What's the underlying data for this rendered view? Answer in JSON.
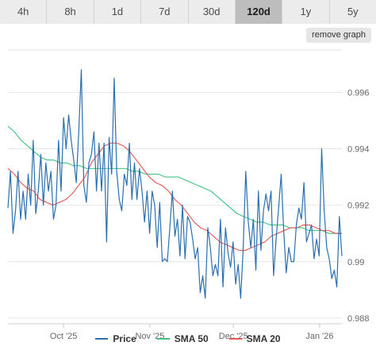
{
  "tabs": [
    {
      "label": "4h"
    },
    {
      "label": "8h"
    },
    {
      "label": "1d"
    },
    {
      "label": "7d"
    },
    {
      "label": "30d"
    },
    {
      "label": "120d",
      "active": true
    },
    {
      "label": "1y"
    },
    {
      "label": "5y"
    }
  ],
  "remove_graph_label": "remove graph",
  "colors": {
    "price": "#2a6fb0",
    "sma50": "#3cc47c",
    "sma20": "#e6564e",
    "grid": "#e6e6e6",
    "axis_text": "#666666"
  },
  "chart_data": {
    "type": "line",
    "x_ticks": [
      {
        "label": "Oct '25",
        "x": 20
      },
      {
        "label": "Nov '25",
        "x": 51
      },
      {
        "label": "Dec '25",
        "x": 81
      },
      {
        "label": "Jan '26",
        "x": 112
      }
    ],
    "y_ticks": [
      {
        "label": "0.988",
        "value": 0.988
      },
      {
        "label": "0.99",
        "value": 0.99
      },
      {
        "label": "0.992",
        "value": 0.992
      },
      {
        "label": "0.994",
        "value": 0.994
      },
      {
        "label": "0.996",
        "value": 0.996
      }
    ],
    "xlim": [
      0,
      120
    ],
    "ylim": [
      0.9878,
      0.9975
    ],
    "legend_position": "bottom",
    "series": [
      {
        "name": "Price",
        "key": "price",
        "values": [
          0.9919,
          0.9932,
          0.991,
          0.9918,
          0.9932,
          0.9915,
          0.9925,
          0.9915,
          0.9931,
          0.992,
          0.9943,
          0.9917,
          0.9925,
          0.9938,
          0.992,
          0.9935,
          0.9925,
          0.9932,
          0.9915,
          0.992,
          0.9943,
          0.9925,
          0.9951,
          0.994,
          0.9952,
          0.9943,
          0.9936,
          0.9928,
          0.9946,
          0.9968,
          0.9927,
          0.9921,
          0.9935,
          0.9938,
          0.9946,
          0.9925,
          0.9942,
          0.9925,
          0.9942,
          0.9907,
          0.9944,
          0.9931,
          0.9965,
          0.9932,
          0.9922,
          0.9918,
          0.9931,
          0.9927,
          0.9942,
          0.9922,
          0.9935,
          0.9922,
          0.9933,
          0.9925,
          0.9914,
          0.9925,
          0.991,
          0.9925,
          0.992,
          0.9905,
          0.9921,
          0.99,
          0.9901,
          0.99,
          0.9912,
          0.9925,
          0.9909,
          0.9915,
          0.9902,
          0.992,
          0.9901,
          0.9916,
          0.9914,
          0.9908,
          0.9901,
          0.9905,
          0.9889,
          0.9895,
          0.9887,
          0.9912,
          0.9905,
          0.9895,
          0.9899,
          0.9895,
          0.9915,
          0.9891,
          0.9912,
          0.9903,
          0.9898,
          0.9907,
          0.9892,
          0.9899,
          0.9887,
          0.9905,
          0.9932,
          0.9914,
          0.9905,
          0.9915,
          0.9897,
          0.9925,
          0.9904,
          0.9918,
          0.9924,
          0.9918,
          0.9925,
          0.9895,
          0.9908,
          0.9919,
          0.9931,
          0.9911,
          0.9896,
          0.9905,
          0.99,
          0.99,
          0.9913,
          0.9919,
          0.9915,
          0.9928,
          0.9907,
          0.991,
          0.9913,
          0.9901,
          0.9908,
          0.9902,
          0.994,
          0.9918,
          0.9905,
          0.9901,
          0.9894,
          0.9897,
          0.9891,
          0.9916,
          0.9902
        ]
      },
      {
        "name": "SMA 50",
        "key": "sma50",
        "values": [
          0.9948,
          0.9946,
          0.9943,
          0.9941,
          0.9939,
          0.9937,
          0.9936,
          0.9936,
          0.9935,
          0.9935,
          0.9934,
          0.9934,
          0.9933,
          0.9933,
          0.9933,
          0.9933,
          0.9933,
          0.9933,
          0.9933,
          0.9932,
          0.9932,
          0.9931,
          0.9931,
          0.9931,
          0.993,
          0.993,
          0.993,
          0.9929,
          0.9928,
          0.9927,
          0.9926,
          0.9925,
          0.9923,
          0.9921,
          0.9919,
          0.9917,
          0.9916,
          0.9915,
          0.9914,
          0.9914,
          0.9913,
          0.9913,
          0.9913,
          0.9912,
          0.9912,
          0.9912,
          0.9911,
          0.9911,
          0.9911,
          0.991,
          0.991,
          0.991
        ]
      },
      {
        "name": "SMA 20",
        "key": "sma20",
        "values": [
          0.9933,
          0.9931,
          0.9928,
          0.9926,
          0.9925,
          0.9922,
          0.9921,
          0.992,
          0.9921,
          0.9922,
          0.9924,
          0.9927,
          0.993,
          0.9935,
          0.9938,
          0.9941,
          0.9942,
          0.9942,
          0.9941,
          0.9939,
          0.9936,
          0.9933,
          0.993,
          0.9928,
          0.9927,
          0.9925,
          0.9922,
          0.992,
          0.9917,
          0.9914,
          0.9912,
          0.9911,
          0.9909,
          0.9907,
          0.9906,
          0.9905,
          0.9904,
          0.9904,
          0.9905,
          0.9906,
          0.9907,
          0.9909,
          0.991,
          0.9911,
          0.9912,
          0.9912,
          0.9913,
          0.9913,
          0.9912,
          0.9911,
          0.9911,
          0.991,
          0.991
        ]
      }
    ]
  }
}
